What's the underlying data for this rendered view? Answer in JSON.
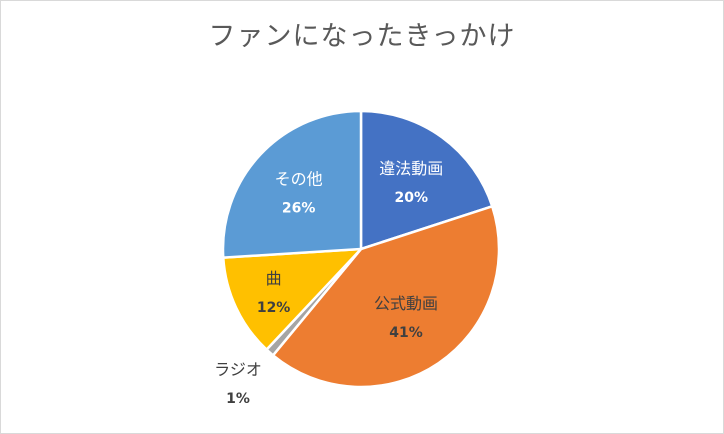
{
  "chart_data": {
    "type": "pie",
    "title": "ファンになったきっかけ",
    "categories": [
      "違法動画",
      "公式動画",
      "ラジオ",
      "曲",
      "その他"
    ],
    "values": [
      20,
      41,
      1,
      12,
      26
    ],
    "labels": [
      "20%",
      "41%",
      "1%",
      "12%",
      "26%"
    ],
    "colors": [
      "#4472C4",
      "#ED7D31",
      "#A5A5A5",
      "#FFC000",
      "#5B9BD5"
    ],
    "start_angle_deg": 0,
    "direction": "clockwise",
    "legend": "none",
    "data_labels": "category-and-percent"
  }
}
